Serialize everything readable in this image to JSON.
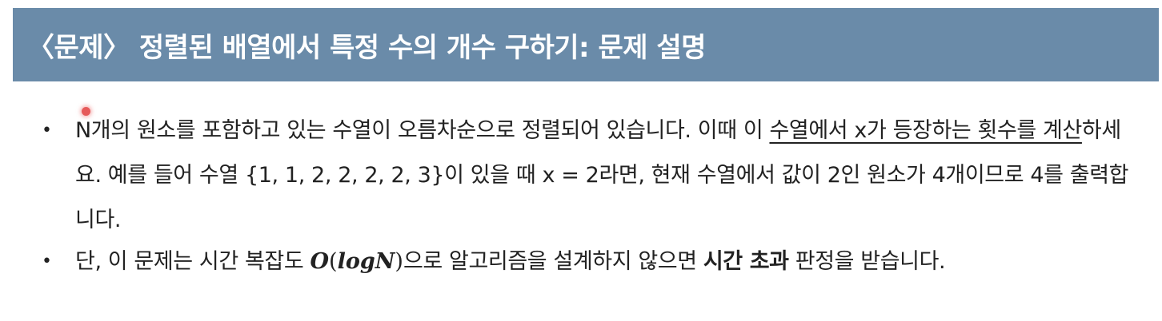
{
  "header": {
    "title": "〈문제〉 정렬된 배열에서 특정 수의 개수 구하기: 문제 설명",
    "background_color": "#6a8ba9"
  },
  "bullets": [
    {
      "part1": "N개의 원소를 포함하고 있는 수열이 오름차순으로 정렬되어 있습니다. 이때 이 ",
      "underline": "수열에서 x가 등장하는 횟수를 계산",
      "part2": "하세요. 예를 들어 수열 {1, 1, 2, 2, 2, 2, 3}이 있을 때 x = 2라면, 현재 수열에서 값이 2인 원소가 4개이므로 4를 출력합니다."
    },
    {
      "part1": "단, 이 문제는 시간 복잡도 ",
      "math_o": "O",
      "math_open": "(",
      "math_inner": "logN",
      "math_close": ")",
      "part2": "으로 알고리즘을 설계하지 않으면 ",
      "bold": "시간 초과",
      "part3": " 판정을 받습니다."
    }
  ],
  "bullet_symbol": "•",
  "cursor_color": "#e65a5a"
}
